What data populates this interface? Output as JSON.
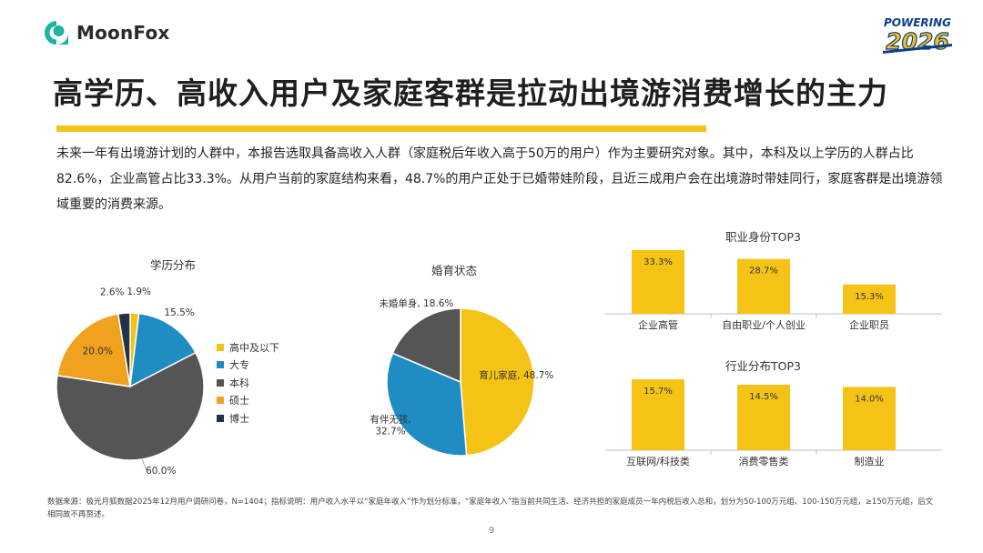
{
  "brand": {
    "name": "MoonFox",
    "badge_top": "POWERING",
    "badge_bottom": "2026",
    "color": "#1bb6a0"
  },
  "title": "高学历、高收入用户及家庭客群是拉动出境游消费增长的主力",
  "intro": "未来一年有出境游计划的人群中，本报告选取具备高收入人群（家庭税后年收入高于50万的用户）作为主要研究对象。其中，本科及以上学历的人群占比82.6%，企业高管占比33.3%。从用户当前的家庭结构来看，48.7%的用户正处于已婚带娃阶段，且近三成用户会在出境游时带娃同行，家庭客群是出境游领域重要的消费来源。",
  "chart_data": [
    {
      "type": "pie",
      "title": "学历分布",
      "unit": "%",
      "slices": [
        {
          "label": "高中及以下",
          "value": 1.9,
          "color": "#f5c316"
        },
        {
          "label": "大专",
          "value": 15.5,
          "color": "#1f8dc4"
        },
        {
          "label": "本科",
          "value": 60.0,
          "color": "#555555"
        },
        {
          "label": "硕士",
          "value": 20.0,
          "color": "#f0a21e"
        },
        {
          "label": "博士",
          "value": 2.6,
          "color": "#233247"
        }
      ],
      "legend": "right"
    },
    {
      "type": "pie",
      "title": "婚育状态",
      "unit": "%",
      "slices": [
        {
          "label": "育儿家庭",
          "value": 48.7,
          "color": "#f5c316"
        },
        {
          "label": "有伴无孩",
          "value": 32.7,
          "color": "#1f8dc4"
        },
        {
          "label": "未婚单身",
          "value": 18.6,
          "color": "#555555"
        }
      ]
    },
    {
      "type": "bar",
      "title": "职业身份TOP3",
      "categories": [
        "企业高管",
        "自由职业/个人创业",
        "企业职员"
      ],
      "values": [
        33.3,
        28.7,
        15.3
      ],
      "unit": "%",
      "color": "#f5c316"
    },
    {
      "type": "bar",
      "title": "行业分布TOP3",
      "categories": [
        "互联网/科技类",
        "消费零售类",
        "制造业"
      ],
      "values": [
        15.7,
        14.5,
        14.0
      ],
      "unit": "%",
      "color": "#f5c316"
    }
  ],
  "footnote": "数据来源：极光月狐数据2025年12月用户调研问卷，N=1404；指标说明：用户收入水平以“家庭年收入”作为划分标准，“家庭年收入”指当前共同生活、经济共担的家庭成员一年内税后收入总和，划分为50-100万元组、100-150万元组，≥150万元组，后文相同故不再赘述。",
  "page_number": "9"
}
